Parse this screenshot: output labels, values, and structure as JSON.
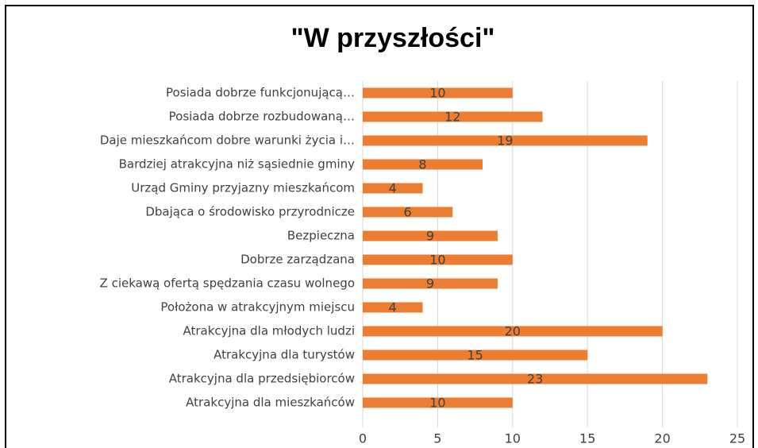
{
  "chart_data": {
    "type": "hbar",
    "title": "\"W przyszłości\"",
    "categories": [
      "Posiada dobrze funkcjonującą…",
      "Posiada dobrze rozbudowaną…",
      "Daje mieszkańcom dobre warunki życia i…",
      "Bardziej atrakcyjna niż sąsiednie gminy",
      "Urząd Gminy przyjazny mieszkańcom",
      "Dbająca o środowisko przyrodnicze",
      "Bezpieczna",
      "Dobrze zarządzana",
      "Z ciekawą ofertą spędzania czasu wolnego",
      "Położona w atrakcyjnym miejscu",
      "Atrakcyjna dla młodych ludzi",
      "Atrakcyjna dla turystów",
      "Atrakcyjna dla przedsiębiorców",
      "Atrakcyjna dla mieszkańców"
    ],
    "values": [
      10,
      12,
      19,
      8,
      4,
      6,
      9,
      10,
      9,
      4,
      20,
      15,
      23,
      10
    ],
    "color": "#ed7d31",
    "xlim": [
      0,
      25
    ],
    "xticks": [
      0,
      5,
      10,
      15,
      20,
      25
    ],
    "grid": true
  }
}
